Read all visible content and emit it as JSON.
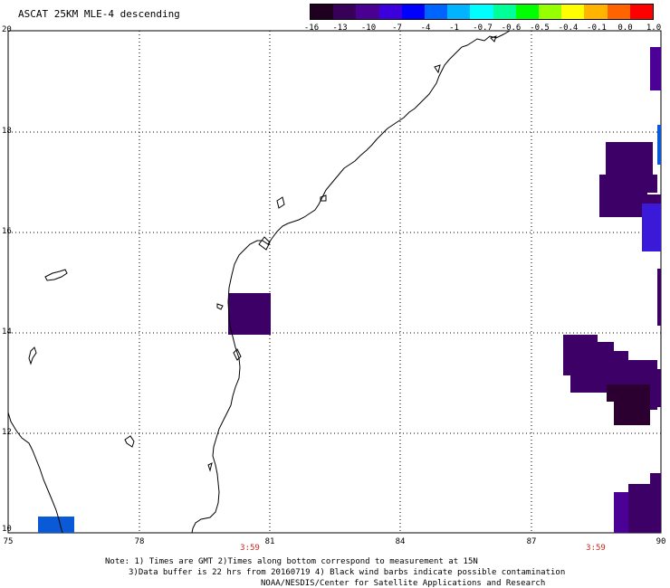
{
  "title": "ASCAT 25KM MLE-4 descending",
  "colorbar": {
    "labels": [
      "-16",
      "-13",
      "-10",
      "-7",
      "-4",
      "-1",
      "-0.7",
      "-0.6",
      "-0.5",
      "-0.4",
      "-0.1",
      "0.0",
      "1.0"
    ],
    "colors": [
      "#200020",
      "#380058",
      "#4a0090",
      "#3c00dc",
      "#0000ff",
      "#0064ff",
      "#00b4ff",
      "#00ffff",
      "#00ff96",
      "#00ff00",
      "#96ff00",
      "#ffff00",
      "#ffb400",
      "#ff6400",
      "#ff0000"
    ]
  },
  "axes": {
    "lat_ticks": [
      "20",
      "18",
      "16",
      "14",
      "12",
      "10"
    ],
    "lon_ticks": [
      "75",
      "78",
      "81",
      "84",
      "87",
      "90"
    ]
  },
  "pass_times": [
    "3:59",
    "3:59"
  ],
  "notes": [
    "Note: 1) Times are GMT 2)Times along bottom correspond to measurement at 15N",
    "3)Data buffer is 22 hrs from 20160719 4) Black wind barbs indicate possible contamination",
    "NOAA/NESDIS/Center for Satellite Applications and Research"
  ],
  "colors": {
    "dark_purple": "#3d0066",
    "indigo": "#4b0096",
    "very_dark": "#2b0030",
    "blue": "#0a5ad8",
    "blue_violet": "#3a1ad8",
    "time_red": "#c8281e"
  }
}
